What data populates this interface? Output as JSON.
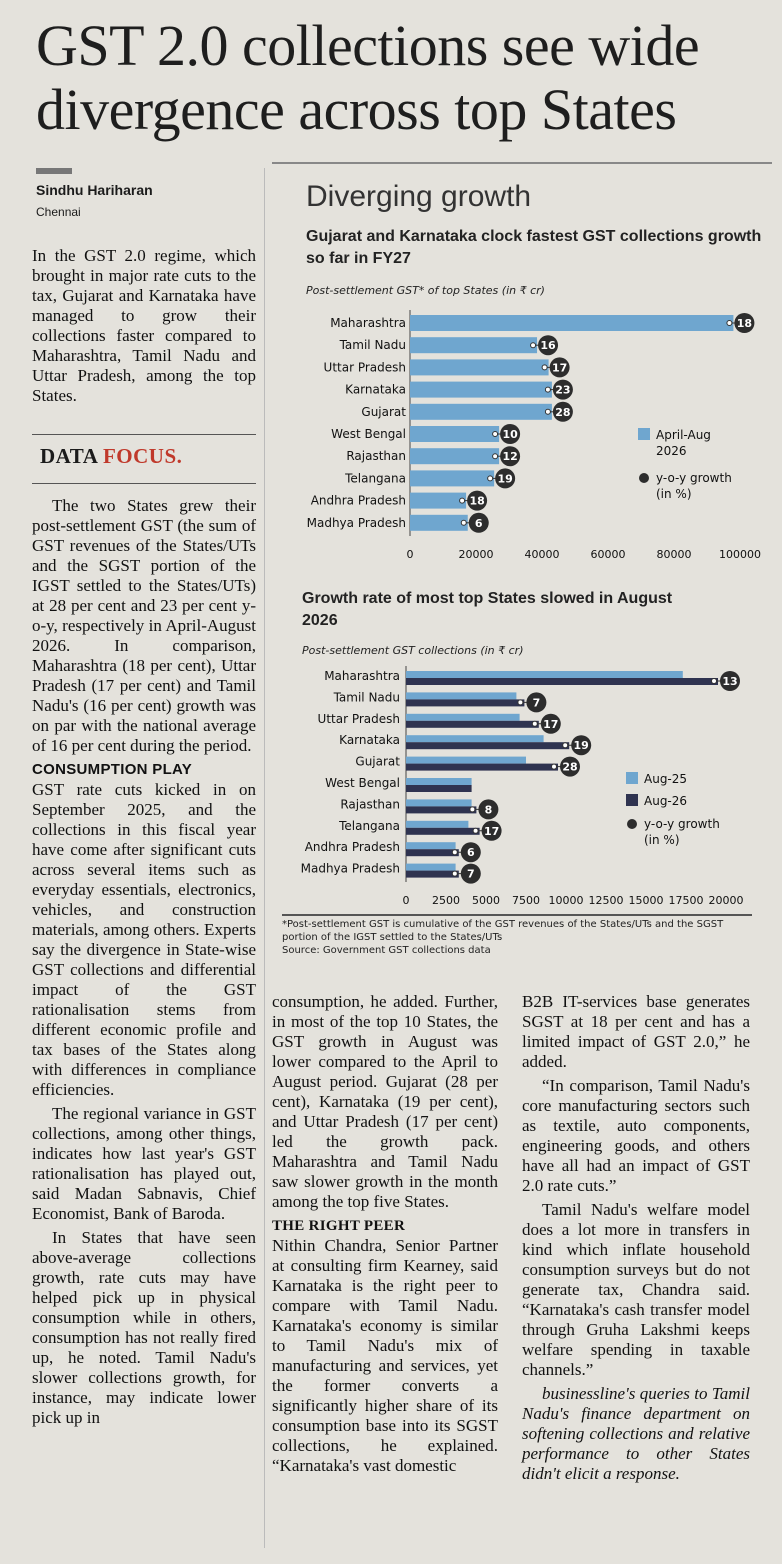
{
  "headline": {
    "line1": "GST 2.0 collections see wide",
    "line2": "divergence across top States"
  },
  "byline": {
    "author": "Sindhu Hariharan",
    "city": "Chennai"
  },
  "intro": "In the GST 2.0 regime, which brought in major rate cuts to the tax, Gujarat and Karnataka have managed to grow their collections faster compared to Maharashtra, Tamil Nadu and Uttar Pradesh, among the top States.",
  "data_focus": {
    "word1": "DATA",
    "word2": "FOCUS."
  },
  "col1_paragraphs": [
    "The two States grew their post-settlement GST (the sum of GST revenues of the States/UTs and the SGST portion of the IGST settled to the States/UTs) at 28 per cent and 23 per cent y-o-y, respectively in April-August 2026. In comparison, Maharashtra (18 per cent), Uttar Pradesh (17 per cent) and Tamil Nadu's (16 per cent) growth was on par with the national average of 16 per cent during the period."
  ],
  "subhead_consumption": "CONSUMPTION PLAY",
  "col1_paragraphs_b": [
    "GST rate cuts kicked in on September 2025, and the collections in this fiscal year have come after significant cuts across several items such as everyday essentials, electronics, vehicles, and construction materials, among others. Experts say the divergence in State-wise GST collections and differential impact of the GST rationalisation stems from different economic profile and tax bases of the States along with differences in compliance efficiencies.",
    "The regional variance in GST collections, among other things, indicates how last year's GST rationalisation has played out, said Madan Sabnavis, Chief Economist, Bank of Baroda.",
    "In States that have seen above-average collections growth, rate cuts may have helped pick up in physical consumption while in others, consumption has not really fired up, he noted. Tamil Nadu's slower collections growth, for instance, may indicate lower pick up in"
  ],
  "col2_paragraphs": [
    "consumption, he added. Further, in most of the top 10 States, the GST growth in August was lower compared to the April to August period. Gujarat (28 per cent), Karnataka (19 per cent), and Uttar Pradesh (17 per cent) led the growth pack. Maharashtra and Tamil Nadu saw slower growth in the month among the top five States."
  ],
  "subhead_peer": "THE RIGHT PEER",
  "col2_paragraphs_b": [
    "Nithin Chandra, Senior Partner at consulting firm Kearney, said Karnataka is the right peer to compare with Tamil Nadu. Karnataka's economy is similar to Tamil Nadu's mix of manufacturing and services, yet the former converts a significantly higher share of its consumption base into its SGST collections, he explained. “Karnataka's vast domestic"
  ],
  "col3_paragraphs": [
    "B2B IT-services base generates SGST at 18 per cent and has a limited impact of GST 2.0,” he added.",
    "“In comparison, Tamil Nadu's core manufacturing sectors such as textile, auto components, engineering goods, and others have all had an impact of GST 2.0 rate cuts.”",
    "Tamil Nadu's welfare model does a lot more in transfers in kind which inflate household consumption surveys but do not generate tax, Chandra said. “Karnataka's cash transfer model through Gruha Lakshmi keeps welfare spending in taxable channels.”",
    "businessline's queries to Tamil Nadu's finance department on softening collections and relative performance to other States didn't elicit a response."
  ],
  "graphic": {
    "title": "Diverging growth",
    "footnote": "*Post-settlement GST is cumulative of the GST revenues of the States/UTs and the SGST portion of the IGST settled to the States/UTs",
    "source": "Source: Government GST collections data"
  },
  "colors": {
    "light_bar": "#6fa6cf",
    "dark_bar": "#2f3350",
    "marker": "#2d2d2d",
    "accent_red": "#c0392b"
  },
  "chart_data": [
    {
      "type": "bar",
      "title": "Gujarat and Karnataka clock fastest GST collections growth so far in FY27",
      "subtitle": "Post-settlement GST* of top States (in ₹ cr)",
      "categories": [
        "Maharashtra",
        "Tamil Nadu",
        "Uttar Pradesh",
        "Karnataka",
        "Gujarat",
        "West Bengal",
        "Rajasthan",
        "Telangana",
        "Andhra Pradesh",
        "Madhya Pradesh"
      ],
      "series": [
        {
          "name": "April-Aug 2026",
          "values": [
            98000,
            38500,
            42000,
            43000,
            43000,
            27000,
            27000,
            25500,
            17000,
            17500
          ]
        },
        {
          "name": "y-o-y growth (in %)",
          "values": [
            18,
            16,
            17,
            23,
            28,
            10,
            12,
            19,
            18,
            6
          ]
        }
      ],
      "xlim": [
        0,
        100000
      ],
      "xticks": [
        "0",
        "20000",
        "40000",
        "60000",
        "80000",
        "100000"
      ],
      "legend_position": "right"
    },
    {
      "type": "bar",
      "title": "Growth rate of most top States slowed in August 2026",
      "subtitle": "Post-settlement GST collections (in ₹ cr)",
      "categories": [
        "Maharashtra",
        "Tamil Nadu",
        "Uttar Pradesh",
        "Karnataka",
        "Gujarat",
        "West Bengal",
        "Rajasthan",
        "Telangana",
        "Andhra Pradesh",
        "Madhya Pradesh"
      ],
      "series": [
        {
          "name": "Aug-25",
          "values": [
            17300,
            6900,
            7100,
            8600,
            7500,
            4100,
            4100,
            3900,
            3100,
            3100
          ]
        },
        {
          "name": "Aug-26",
          "values": [
            19500,
            7400,
            8300,
            10200,
            9500,
            4100,
            4400,
            4600,
            3300,
            3300
          ]
        },
        {
          "name": "y-o-y growth (in %)",
          "values": [
            13,
            7,
            17,
            19,
            28,
            null,
            8,
            17,
            6,
            7
          ]
        }
      ],
      "xlim": [
        0,
        20000
      ],
      "xticks": [
        "0",
        "2500",
        "5000",
        "7500",
        "10000",
        "12500",
        "15000",
        "17500",
        "20000"
      ],
      "legend_position": "right"
    }
  ]
}
